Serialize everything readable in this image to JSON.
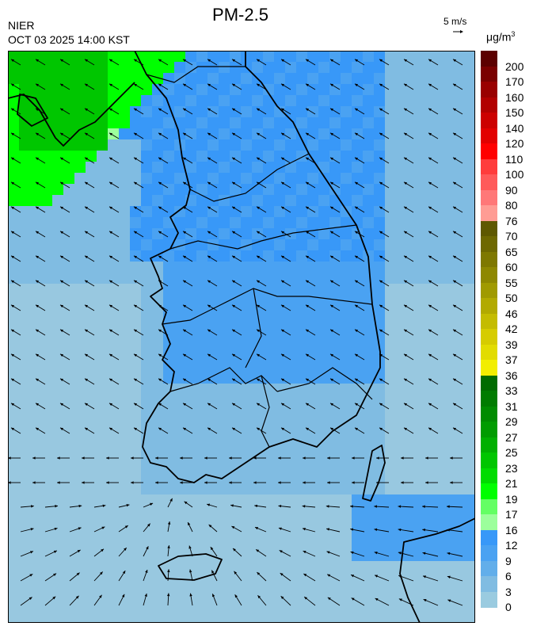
{
  "header": {
    "title": "PM-2.5",
    "organization": "NIER",
    "timestamp": "OCT 03 2025 14:00 KST",
    "wind_reference": "5 m/s",
    "unit": "μg/m",
    "unit_exponent": "3"
  },
  "colorbar": {
    "labels": [
      "200",
      "170",
      "160",
      "150",
      "140",
      "120",
      "110",
      "100",
      "90",
      "80",
      "76",
      "70",
      "65",
      "60",
      "55",
      "50",
      "46",
      "42",
      "39",
      "37",
      "36",
      "33",
      "31",
      "29",
      "27",
      "25",
      "23",
      "21",
      "19",
      "17",
      "16",
      "12",
      "9",
      "6",
      "3",
      "0"
    ],
    "colors": [
      "#5c0000",
      "#7a0000",
      "#990000",
      "#b20000",
      "#cc0000",
      "#e20000",
      "#ff0000",
      "#ff3c3c",
      "#ff5a5a",
      "#ff7878",
      "#ff9c94",
      "#5e5800",
      "#6e6800",
      "#7e7800",
      "#8e8800",
      "#a09a00",
      "#b2aa00",
      "#c4bc00",
      "#d6cc00",
      "#e2dc00",
      "#f2ee00",
      "#006c00",
      "#007c00",
      "#008c00",
      "#009c00",
      "#00b000",
      "#00c600",
      "#00dc00",
      "#00ff00",
      "#64ff64",
      "#9cff9c",
      "#3898f8",
      "#4aa2f2",
      "#62aeea",
      "#80bce2",
      "#9acbe0"
    ]
  },
  "map": {
    "sea_color": "#98c8e0",
    "land_low_color": "#80bce2",
    "land_mid_color": "#4aa2f2",
    "land_high_color": "#3898f8",
    "green_high_color": "#00c600",
    "green_mid_color": "#00ff00",
    "green_low_color": "#9cff9c"
  }
}
